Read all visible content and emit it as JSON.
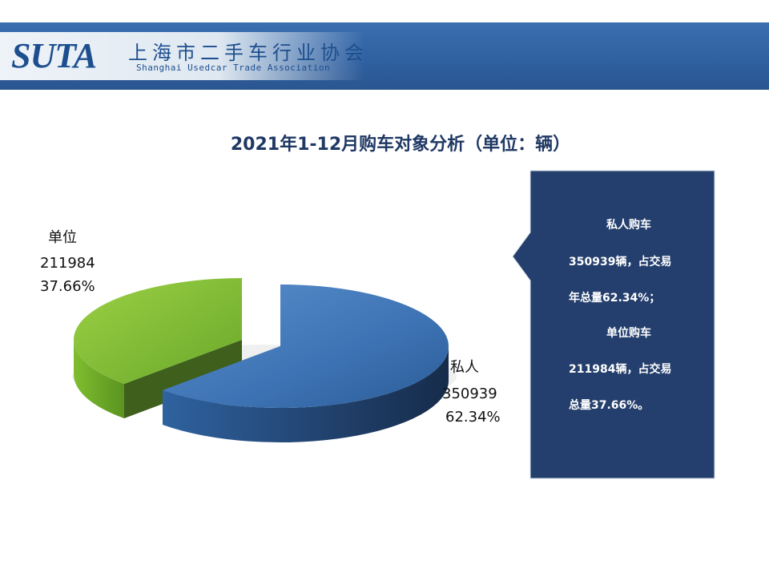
{
  "header": {
    "logo_mark": "SUTA",
    "logo_cn": "上海市二手车行业协会",
    "logo_en": "Shanghai Usedcar Trade Association"
  },
  "chart_data": {
    "type": "pie",
    "title": "2021年1-12月购车对象分析（单位：辆）",
    "slices": [
      {
        "name": "私人",
        "value": 350939,
        "percent_label": "62.34%",
        "color": "#3d73b4"
      },
      {
        "name": "单位",
        "value": 211984,
        "percent_label": "37.66%",
        "color": "#76b82a"
      }
    ]
  },
  "callout": {
    "lines": [
      "私人购车",
      "350939辆，占交易",
      "年总量62.34%；",
      "单位购车",
      "211984辆，占交易",
      "总量37.66%。"
    ],
    "background": "#243f6d"
  }
}
